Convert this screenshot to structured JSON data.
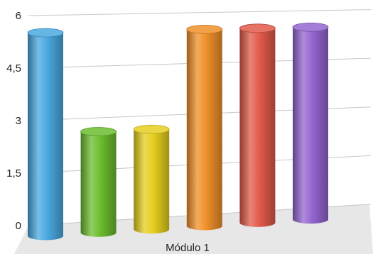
{
  "chart_data": {
    "type": "bar",
    "style": "3d-cylinder",
    "categories": [
      "Módulo 1"
    ],
    "ylim": [
      0,
      6
    ],
    "yticks": [
      "0",
      "1,5",
      "3",
      "4,5",
      "6"
    ],
    "grid": true,
    "legend": "none",
    "series": [
      {
        "values": [
          5.5
        ],
        "color": "#4aa8e0"
      },
      {
        "values": [
          2.6
        ],
        "color": "#6cbd2f"
      },
      {
        "values": [
          2.6
        ],
        "color": "#e6cf1f"
      },
      {
        "values": [
          5.5
        ],
        "color": "#f0902a"
      },
      {
        "values": [
          5.5
        ],
        "color": "#e25a4a"
      },
      {
        "values": [
          5.5
        ],
        "color": "#9466cf"
      }
    ]
  }
}
